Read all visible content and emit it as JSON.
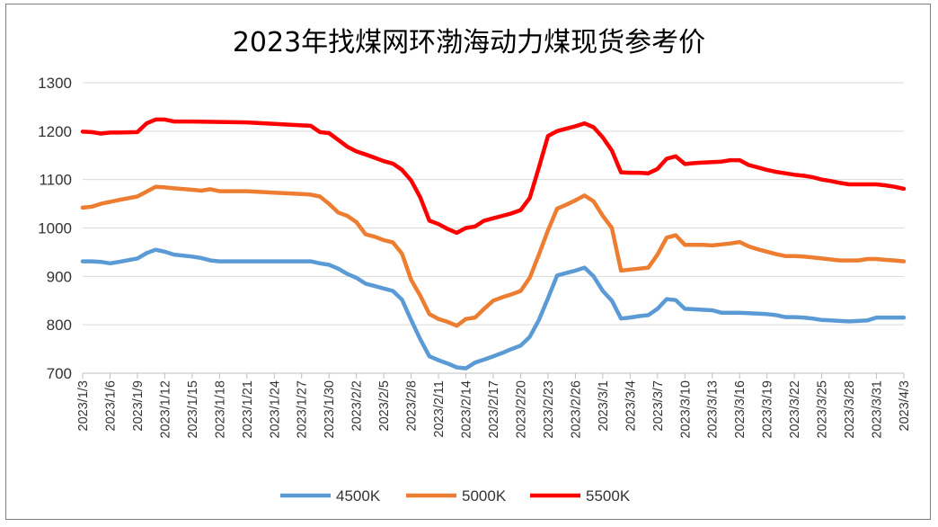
{
  "chart_data": {
    "type": "line",
    "title": "2023年找煤网环渤海动力煤现货参考价",
    "ylim": [
      700,
      1300
    ],
    "yticks": [
      700,
      800,
      900,
      1000,
      1100,
      1200,
      1300
    ],
    "grid": true,
    "legend_position": "bottom",
    "x_tick_labels": [
      "2023/1/3",
      "2023/1/6",
      "2023/1/9",
      "2023/1/12",
      "2023/1/15",
      "2023/1/18",
      "2023/1/21",
      "2023/1/24",
      "2023/1/27",
      "2023/1/30",
      "2023/2/2",
      "2023/2/5",
      "2023/2/8",
      "2023/2/11",
      "2023/2/14",
      "2023/2/17",
      "2023/2/20",
      "2023/2/23",
      "2023/2/26",
      "2023/3/1",
      "2023/3/4",
      "2023/3/7",
      "2023/3/10",
      "2023/3/13",
      "2023/3/16",
      "2023/3/19",
      "2023/3/22",
      "2023/3/25",
      "2023/3/28",
      "2023/3/31",
      "2023/4/3"
    ],
    "x_days": [
      0,
      3,
      6,
      9,
      12,
      15,
      18,
      21,
      24,
      27,
      30,
      33,
      36,
      39,
      42,
      45,
      48,
      51,
      54,
      57,
      60,
      63,
      66,
      69,
      72,
      75,
      78,
      81,
      84,
      87,
      90
    ],
    "series": [
      {
        "name": "4500K",
        "color": "#5b9bd5",
        "points": [
          [
            0,
            931
          ],
          [
            1,
            931
          ],
          [
            2,
            930
          ],
          [
            3,
            927
          ],
          [
            4,
            930
          ],
          [
            6,
            937
          ],
          [
            7,
            948
          ],
          [
            8,
            955
          ],
          [
            9,
            951
          ],
          [
            10,
            945
          ],
          [
            12,
            941
          ],
          [
            13,
            938
          ],
          [
            14,
            933
          ],
          [
            15,
            931
          ],
          [
            18,
            931
          ],
          [
            21,
            931
          ],
          [
            25,
            931
          ],
          [
            26,
            927
          ],
          [
            27,
            924
          ],
          [
            28,
            916
          ],
          [
            29,
            905
          ],
          [
            30,
            897
          ],
          [
            31,
            885
          ],
          [
            32,
            880
          ],
          [
            33,
            875
          ],
          [
            34,
            870
          ],
          [
            35,
            852
          ],
          [
            36,
            810
          ],
          [
            37,
            770
          ],
          [
            38,
            735
          ],
          [
            39,
            727
          ],
          [
            40,
            720
          ],
          [
            41,
            712
          ],
          [
            42,
            710
          ],
          [
            43,
            722
          ],
          [
            44,
            728
          ],
          [
            45,
            735
          ],
          [
            46,
            742
          ],
          [
            47,
            750
          ],
          [
            48,
            757
          ],
          [
            49,
            775
          ],
          [
            50,
            810
          ],
          [
            51,
            855
          ],
          [
            52,
            902
          ],
          [
            53,
            907
          ],
          [
            54,
            912
          ],
          [
            55,
            918
          ],
          [
            56,
            900
          ],
          [
            57,
            870
          ],
          [
            58,
            850
          ],
          [
            59,
            813
          ],
          [
            60,
            815
          ],
          [
            61,
            818
          ],
          [
            62,
            820
          ],
          [
            63,
            833
          ],
          [
            64,
            853
          ],
          [
            65,
            851
          ],
          [
            66,
            833
          ],
          [
            67,
            832
          ],
          [
            68,
            831
          ],
          [
            69,
            830
          ],
          [
            70,
            825
          ],
          [
            71,
            825
          ],
          [
            72,
            825
          ],
          [
            73,
            824
          ],
          [
            74,
            823
          ],
          [
            75,
            822
          ],
          [
            76,
            820
          ],
          [
            77,
            816
          ],
          [
            78,
            816
          ],
          [
            79,
            815
          ],
          [
            80,
            813
          ],
          [
            81,
            810
          ],
          [
            82,
            809
          ],
          [
            83,
            808
          ],
          [
            84,
            807
          ],
          [
            85,
            808
          ],
          [
            86,
            809
          ],
          [
            87,
            815
          ],
          [
            88,
            815
          ],
          [
            89,
            815
          ],
          [
            90,
            815
          ]
        ]
      },
      {
        "name": "5000K",
        "color": "#ed7d31",
        "points": [
          [
            0,
            1042
          ],
          [
            1,
            1044
          ],
          [
            2,
            1050
          ],
          [
            3,
            1054
          ],
          [
            4,
            1058
          ],
          [
            6,
            1065
          ],
          [
            7,
            1075
          ],
          [
            8,
            1085
          ],
          [
            9,
            1084
          ],
          [
            10,
            1082
          ],
          [
            12,
            1079
          ],
          [
            13,
            1077
          ],
          [
            14,
            1080
          ],
          [
            15,
            1076
          ],
          [
            18,
            1076
          ],
          [
            21,
            1073
          ],
          [
            24,
            1070
          ],
          [
            25,
            1069
          ],
          [
            26,
            1065
          ],
          [
            27,
            1050
          ],
          [
            28,
            1032
          ],
          [
            29,
            1025
          ],
          [
            30,
            1012
          ],
          [
            31,
            987
          ],
          [
            32,
            982
          ],
          [
            33,
            975
          ],
          [
            34,
            970
          ],
          [
            35,
            947
          ],
          [
            36,
            893
          ],
          [
            37,
            860
          ],
          [
            38,
            822
          ],
          [
            39,
            812
          ],
          [
            40,
            806
          ],
          [
            41,
            798
          ],
          [
            42,
            812
          ],
          [
            43,
            815
          ],
          [
            44,
            833
          ],
          [
            45,
            850
          ],
          [
            46,
            857
          ],
          [
            47,
            863
          ],
          [
            48,
            870
          ],
          [
            49,
            897
          ],
          [
            50,
            945
          ],
          [
            51,
            995
          ],
          [
            52,
            1040
          ],
          [
            53,
            1048
          ],
          [
            54,
            1057
          ],
          [
            55,
            1067
          ],
          [
            56,
            1055
          ],
          [
            57,
            1025
          ],
          [
            58,
            1000
          ],
          [
            59,
            912
          ],
          [
            60,
            914
          ],
          [
            61,
            916
          ],
          [
            62,
            918
          ],
          [
            63,
            945
          ],
          [
            64,
            980
          ],
          [
            65,
            985
          ],
          [
            66,
            965
          ],
          [
            67,
            965
          ],
          [
            68,
            965
          ],
          [
            69,
            964
          ],
          [
            70,
            966
          ],
          [
            71,
            968
          ],
          [
            72,
            971
          ],
          [
            73,
            962
          ],
          [
            74,
            956
          ],
          [
            75,
            951
          ],
          [
            76,
            946
          ],
          [
            77,
            942
          ],
          [
            78,
            942
          ],
          [
            79,
            941
          ],
          [
            80,
            939
          ],
          [
            81,
            937
          ],
          [
            82,
            935
          ],
          [
            83,
            933
          ],
          [
            84,
            933
          ],
          [
            85,
            933
          ],
          [
            86,
            936
          ],
          [
            87,
            936
          ],
          [
            88,
            934
          ],
          [
            89,
            933
          ],
          [
            90,
            931
          ]
        ]
      },
      {
        "name": "5500K",
        "color": "#ff0000",
        "points": [
          [
            0,
            1199
          ],
          [
            1,
            1198
          ],
          [
            2,
            1195
          ],
          [
            3,
            1197
          ],
          [
            4,
            1197
          ],
          [
            6,
            1198
          ],
          [
            7,
            1216
          ],
          [
            8,
            1224
          ],
          [
            9,
            1224
          ],
          [
            10,
            1220
          ],
          [
            12,
            1220
          ],
          [
            15,
            1219
          ],
          [
            18,
            1218
          ],
          [
            21,
            1215
          ],
          [
            24,
            1212
          ],
          [
            25,
            1211
          ],
          [
            26,
            1198
          ],
          [
            27,
            1196
          ],
          [
            28,
            1182
          ],
          [
            29,
            1168
          ],
          [
            30,
            1158
          ],
          [
            31,
            1152
          ],
          [
            32,
            1145
          ],
          [
            33,
            1138
          ],
          [
            34,
            1133
          ],
          [
            35,
            1120
          ],
          [
            36,
            1098
          ],
          [
            37,
            1063
          ],
          [
            38,
            1015
          ],
          [
            39,
            1008
          ],
          [
            40,
            998
          ],
          [
            41,
            990
          ],
          [
            42,
            1000
          ],
          [
            43,
            1003
          ],
          [
            44,
            1015
          ],
          [
            45,
            1020
          ],
          [
            46,
            1025
          ],
          [
            47,
            1030
          ],
          [
            48,
            1037
          ],
          [
            49,
            1062
          ],
          [
            50,
            1125
          ],
          [
            51,
            1190
          ],
          [
            52,
            1200
          ],
          [
            53,
            1205
          ],
          [
            54,
            1210
          ],
          [
            55,
            1216
          ],
          [
            56,
            1208
          ],
          [
            57,
            1187
          ],
          [
            58,
            1160
          ],
          [
            59,
            1115
          ],
          [
            60,
            1114
          ],
          [
            61,
            1114
          ],
          [
            62,
            1113
          ],
          [
            63,
            1122
          ],
          [
            64,
            1143
          ],
          [
            65,
            1148
          ],
          [
            66,
            1132
          ],
          [
            67,
            1134
          ],
          [
            68,
            1135
          ],
          [
            69,
            1136
          ],
          [
            70,
            1137
          ],
          [
            71,
            1140
          ],
          [
            72,
            1140
          ],
          [
            73,
            1130
          ],
          [
            74,
            1125
          ],
          [
            75,
            1120
          ],
          [
            76,
            1116
          ],
          [
            77,
            1113
          ],
          [
            78,
            1110
          ],
          [
            79,
            1108
          ],
          [
            80,
            1105
          ],
          [
            81,
            1100
          ],
          [
            82,
            1097
          ],
          [
            83,
            1093
          ],
          [
            84,
            1090
          ],
          [
            85,
            1090
          ],
          [
            86,
            1090
          ],
          [
            87,
            1090
          ],
          [
            88,
            1088
          ],
          [
            89,
            1085
          ],
          [
            90,
            1081
          ]
        ]
      }
    ]
  }
}
